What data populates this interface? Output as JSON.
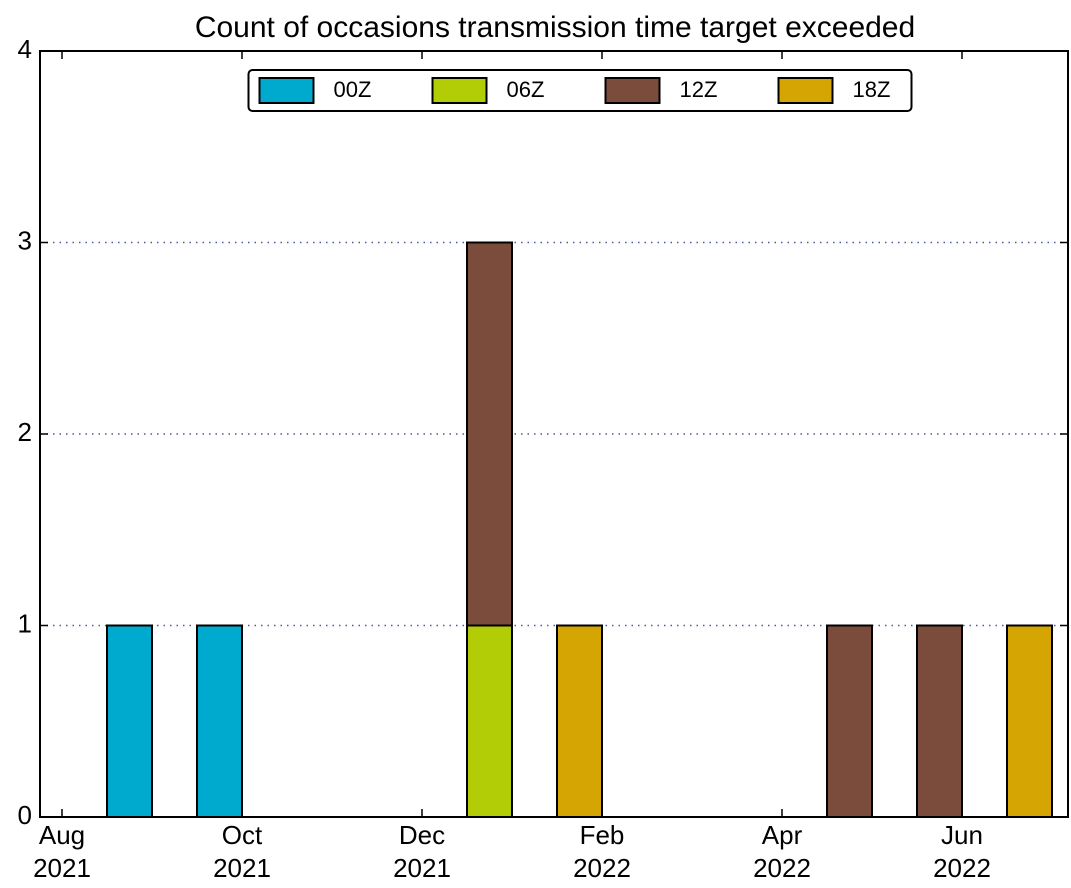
{
  "chart_data": {
    "type": "bar",
    "stacked": true,
    "title": "Count of occasions transmission time target exceeded",
    "x": [
      "2021-09",
      "2021-10",
      "2021-11",
      "2021-12",
      "2022-01",
      "2022-02",
      "2022-03",
      "2022-04",
      "2022-05",
      "2022-06",
      "2022-07"
    ],
    "series": [
      {
        "name": "00Z",
        "color": "#00aacf",
        "values": [
          1,
          1,
          0,
          0,
          0,
          0,
          0,
          0,
          0,
          0,
          0
        ]
      },
      {
        "name": "06Z",
        "color": "#b2cc05",
        "values": [
          0,
          0,
          0,
          0,
          1,
          0,
          0,
          0,
          0,
          0,
          0
        ]
      },
      {
        "name": "12Z",
        "color": "#7b4c3c",
        "values": [
          0,
          0,
          0,
          0,
          2,
          0,
          0,
          0,
          1,
          1,
          0
        ]
      },
      {
        "name": "18Z",
        "color": "#d4a503",
        "values": [
          0,
          0,
          0,
          0,
          0,
          1,
          0,
          0,
          0,
          0,
          1
        ]
      }
    ],
    "xticks": [
      {
        "value": "2021-08",
        "label": "Aug\n2021"
      },
      {
        "value": "2021-10",
        "label": "Oct\n2021"
      },
      {
        "value": "2021-12",
        "label": "Dec\n2021"
      },
      {
        "value": "2022-02",
        "label": "Feb\n2022"
      },
      {
        "value": "2022-04",
        "label": "Apr\n2022"
      },
      {
        "value": "2022-06",
        "label": "Jun\n2022"
      }
    ],
    "ylim": [
      0,
      4
    ],
    "yticks": [
      0,
      1,
      2,
      3,
      4
    ],
    "grid": true,
    "legend": "upper center"
  }
}
